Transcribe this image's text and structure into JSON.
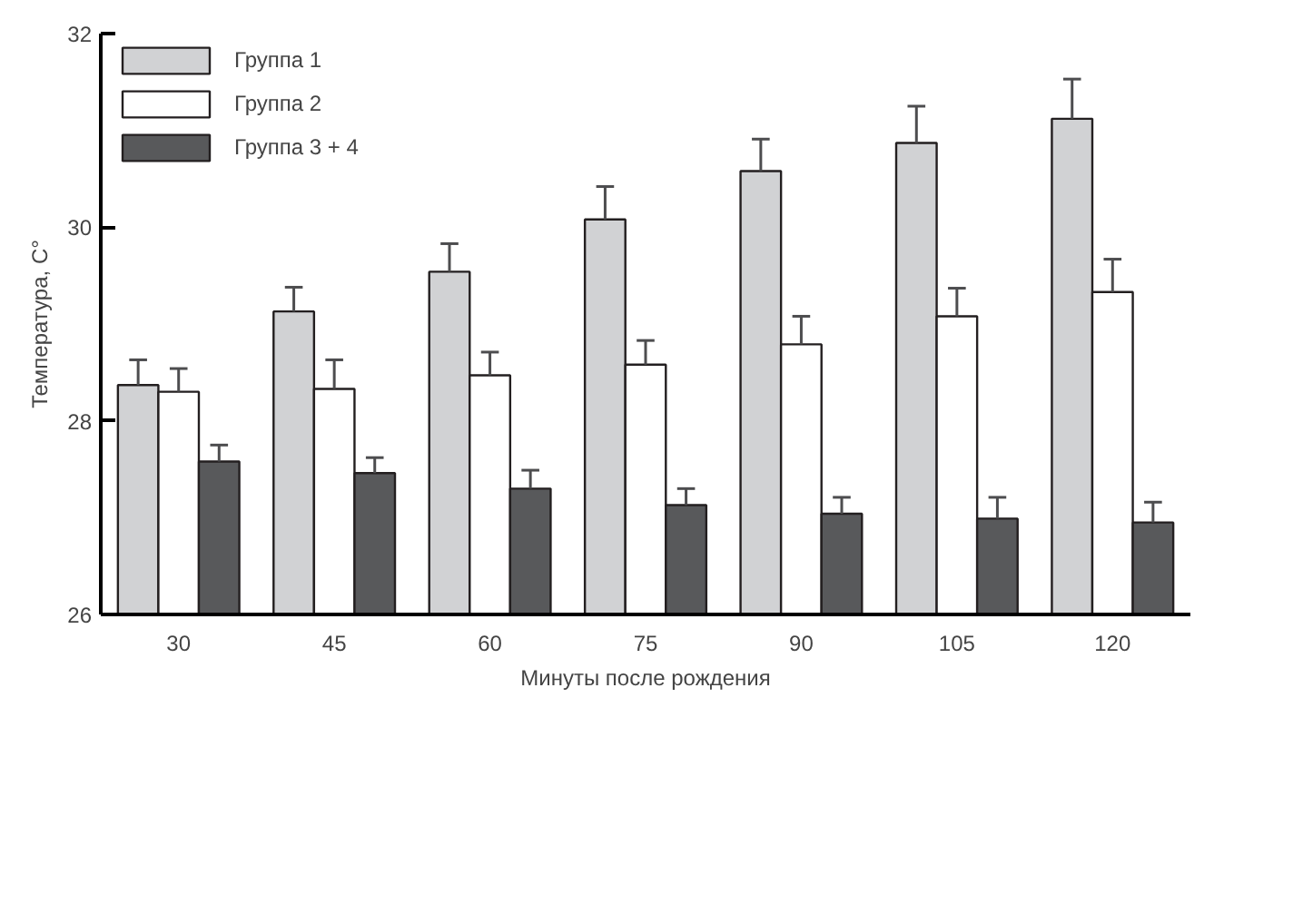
{
  "chart_data": {
    "type": "bar",
    "xlabel": "Минуты после рождения",
    "ylabel": "Температура, C°",
    "categories": [
      "30",
      "45",
      "60",
      "75",
      "90",
      "105",
      "120"
    ],
    "series": [
      {
        "name": "Группа 1",
        "color": "#d1d2d4",
        "values": [
          28.37,
          29.13,
          29.54,
          30.08,
          30.58,
          30.87,
          31.12
        ],
        "errors": [
          [
            28.37,
            28.63
          ],
          [
            29.13,
            29.38
          ],
          [
            29.54,
            29.83
          ],
          [
            30.08,
            30.42
          ],
          [
            30.58,
            30.91
          ],
          [
            30.87,
            31.25
          ],
          [
            31.12,
            31.53
          ]
        ]
      },
      {
        "name": "Группа 2",
        "color": "#ffffff",
        "values": [
          28.3,
          28.33,
          28.47,
          28.58,
          28.79,
          29.08,
          29.33
        ],
        "errors": [
          [
            28.3,
            28.54
          ],
          [
            28.33,
            28.63
          ],
          [
            28.47,
            28.71
          ],
          [
            28.58,
            28.83
          ],
          [
            28.79,
            29.08
          ],
          [
            29.08,
            29.37
          ],
          [
            29.33,
            29.67
          ]
        ]
      },
      {
        "name": "Группа 3 + 4",
        "color": "#58595b",
        "values": [
          27.58,
          27.46,
          27.3,
          27.13,
          27.04,
          26.99,
          26.95
        ],
        "errors": [
          [
            27.58,
            27.75
          ],
          [
            27.46,
            27.62
          ],
          [
            27.3,
            27.49
          ],
          [
            27.13,
            27.3
          ],
          [
            27.04,
            27.21
          ],
          [
            26.99,
            27.21
          ],
          [
            26.95,
            27.16
          ]
        ]
      }
    ],
    "ylim": [
      26,
      32
    ],
    "yticks": [
      26,
      28,
      30,
      32
    ],
    "grid": false,
    "legend": "top left"
  }
}
